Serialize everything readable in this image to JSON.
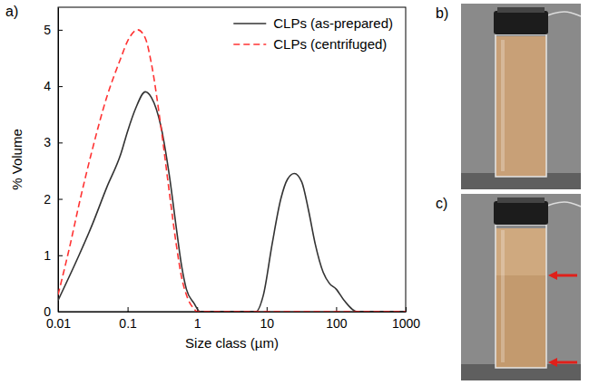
{
  "chart_data": {
    "type": "line",
    "panel_label": "a)",
    "x_label": "Size class (µm)",
    "y_label": "% Volume",
    "log": "x",
    "legend": "upper right",
    "xlim": [
      0.01,
      1000
    ],
    "xticks": [
      0.01,
      0.1,
      1,
      10,
      100,
      1000
    ],
    "ylim": [
      0,
      5.4
    ],
    "yticks": [
      0,
      1,
      2,
      3,
      4,
      5
    ],
    "series": [
      {
        "name": "CLPs (as-prepared)",
        "color": "#333333",
        "line_style": "solid",
        "x": [
          0.01,
          0.02,
          0.03,
          0.05,
          0.08,
          0.1,
          0.13,
          0.18,
          0.22,
          0.3,
          0.4,
          0.5,
          0.6,
          0.7,
          0.9,
          1.1,
          7,
          9,
          12,
          16,
          20,
          25,
          32,
          40,
          50,
          65,
          80,
          100,
          130,
          200,
          1000
        ],
        "values": [
          0.2,
          1.0,
          1.5,
          2.2,
          2.8,
          3.2,
          3.6,
          3.9,
          3.8,
          3.3,
          2.4,
          1.5,
          0.8,
          0.4,
          0.15,
          0,
          0,
          0.3,
          1.2,
          2.0,
          2.35,
          2.45,
          2.3,
          1.8,
          1.2,
          0.7,
          0.5,
          0.4,
          0.2,
          0,
          0
        ]
      },
      {
        "name": "CLPs (centrifuged)",
        "color": "#ff3333",
        "line_style": "dashed",
        "x": [
          0.01,
          0.015,
          0.02,
          0.03,
          0.05,
          0.08,
          0.1,
          0.14,
          0.18,
          0.22,
          0.3,
          0.4,
          0.5,
          0.6,
          0.7,
          0.9,
          1,
          1000
        ],
        "values": [
          0.3,
          1.2,
          1.9,
          2.8,
          3.8,
          4.5,
          4.8,
          5.0,
          4.85,
          4.4,
          3.3,
          2.1,
          1.2,
          0.6,
          0.3,
          0.05,
          0,
          0
        ]
      }
    ]
  },
  "photos": [
    {
      "label": "b)"
    },
    {
      "label": "c)"
    }
  ]
}
